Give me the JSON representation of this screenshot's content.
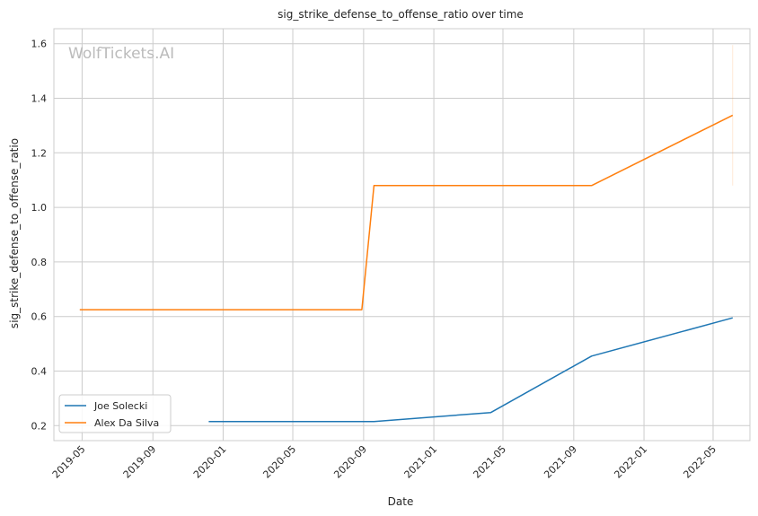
{
  "chart_data": {
    "type": "line",
    "title": "sig_strike_defense_to_offense_ratio over time",
    "xlabel": "Date",
    "ylabel": "sig_strike_defense_to_offense_ratio",
    "watermark": "WolfTickets.AI",
    "xlim": [
      "2019-03-13",
      "2022-07-04"
    ],
    "ylim": [
      0.145,
      1.655
    ],
    "x_ticks": [
      "2019-05",
      "2019-09",
      "2020-01",
      "2020-05",
      "2020-09",
      "2021-01",
      "2021-05",
      "2021-09",
      "2022-01",
      "2022-05"
    ],
    "y_ticks": [
      0.2,
      0.4,
      0.6,
      0.8,
      1.0,
      1.2,
      1.4,
      1.6
    ],
    "grid": true,
    "legend_position": "lower-left",
    "series": [
      {
        "name": "Joe Solecki",
        "color": "#1f77b4",
        "points": [
          {
            "x": "2019-12-07",
            "y": 0.215
          },
          {
            "x": "2020-09-19",
            "y": 0.215
          },
          {
            "x": "2021-04-10",
            "y": 0.248
          },
          {
            "x": "2021-10-02",
            "y": 0.455
          },
          {
            "x": "2022-06-04",
            "y": 0.595
          }
        ]
      },
      {
        "name": "Alex Da Silva",
        "color": "#ff7f0e",
        "points": [
          {
            "x": "2019-04-27",
            "y": 0.625
          },
          {
            "x": "2020-08-29",
            "y": 0.625
          },
          {
            "x": "2020-09-19",
            "y": 1.08
          },
          {
            "x": "2021-10-02",
            "y": 1.08
          },
          {
            "x": "2022-06-04",
            "y": 1.338
          }
        ],
        "range_band": {
          "x": "2022-06-04",
          "low": 1.08,
          "high": 1.595
        }
      }
    ]
  }
}
